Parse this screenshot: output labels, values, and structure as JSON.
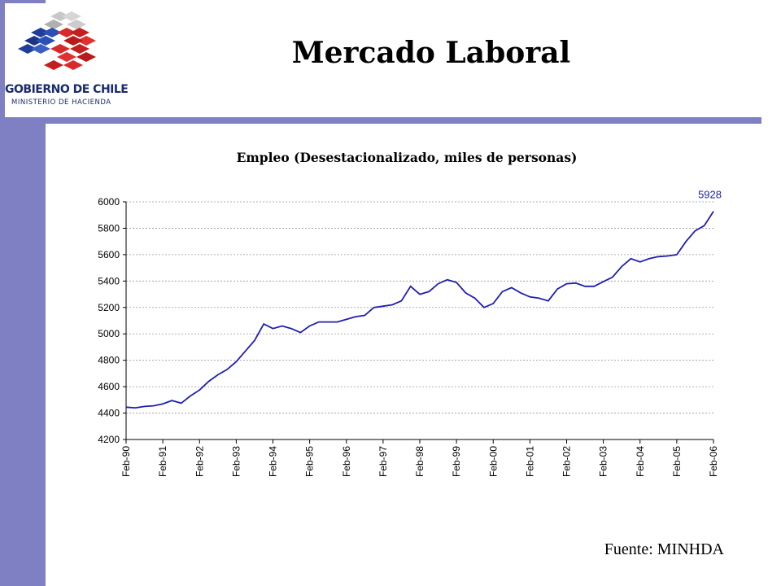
{
  "slide": {
    "title": "Mercado Laboral",
    "source": "Fuente: MINHDA",
    "logo": {
      "line1": "GOBIERNO DE CHILE",
      "line2": "MINISTERIO DE HACIENDA"
    }
  },
  "colors": {
    "sidebar": "#7f7fc4",
    "series": "#1f1fb0"
  },
  "chart_data": {
    "type": "line",
    "title": "Empleo (Desestacionalizado, miles de personas)",
    "xlabel": "",
    "ylabel": "",
    "ylim": [
      4200,
      6000
    ],
    "yticks": [
      4200,
      4400,
      4600,
      4800,
      5000,
      5200,
      5400,
      5600,
      5800,
      6000
    ],
    "xticks": [
      "Feb-90",
      "Feb-91",
      "Feb-92",
      "Feb-93",
      "Feb-94",
      "Feb-95",
      "Feb-96",
      "Feb-97",
      "Feb-98",
      "Feb-99",
      "Feb-00",
      "Feb-01",
      "Feb-02",
      "Feb-03",
      "Feb-04",
      "Feb-05",
      "Feb-06"
    ],
    "grid": "horizontal dashed",
    "end_label": "5928",
    "series": [
      {
        "x": [
          "1990-02",
          "1990-05",
          "1990-08",
          "1990-11",
          "1991-02",
          "1991-05",
          "1991-08",
          "1991-11",
          "1992-02",
          "1992-05",
          "1992-08",
          "1992-11",
          "1993-02",
          "1993-05",
          "1993-08",
          "1993-11",
          "1994-02",
          "1994-05",
          "1994-08",
          "1994-11",
          "1995-02",
          "1995-05",
          "1995-08",
          "1995-11",
          "1996-02",
          "1996-05",
          "1996-08",
          "1996-11",
          "1997-02",
          "1997-05",
          "1997-08",
          "1997-11",
          "1998-02",
          "1998-05",
          "1998-08",
          "1998-11",
          "1999-02",
          "1999-05",
          "1999-08",
          "1999-11",
          "2000-02",
          "2000-05",
          "2000-08",
          "2000-11",
          "2001-02",
          "2001-05",
          "2001-08",
          "2001-11",
          "2002-02",
          "2002-05",
          "2002-08",
          "2002-11",
          "2003-02",
          "2003-05",
          "2003-08",
          "2003-11",
          "2004-02",
          "2004-05",
          "2004-08",
          "2004-11",
          "2005-02",
          "2005-05",
          "2005-08",
          "2005-11",
          "2006-02"
        ],
        "values": [
          4445,
          4440,
          4450,
          4455,
          4470,
          4495,
          4475,
          4530,
          4575,
          4640,
          4690,
          4730,
          4790,
          4870,
          4950,
          5075,
          5040,
          5060,
          5040,
          5010,
          5060,
          5090,
          5090,
          5090,
          5110,
          5130,
          5140,
          5200,
          5210,
          5220,
          5250,
          5360,
          5300,
          5320,
          5380,
          5410,
          5390,
          5310,
          5270,
          5200,
          5230,
          5320,
          5350,
          5310,
          5280,
          5270,
          5250,
          5340,
          5380,
          5385,
          5360,
          5360,
          5395,
          5430,
          5510,
          5570,
          5545,
          5570,
          5585,
          5590,
          5600,
          5700,
          5780,
          5820,
          5928
        ]
      }
    ]
  }
}
